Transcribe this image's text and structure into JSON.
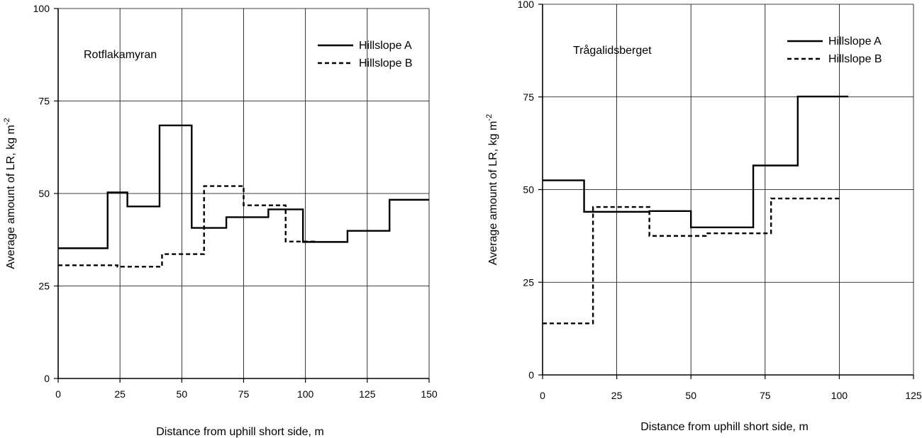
{
  "chart_data": [
    {
      "type": "line",
      "step": true,
      "annotation": "Rotflakamyran",
      "xlabel": "Distance from uphill short side, m",
      "ylabel": "Average amount of LR, kg m",
      "ylabel_sup": "-2",
      "xlim": [
        0,
        150
      ],
      "ylim": [
        0,
        100
      ],
      "xticks": [
        0,
        25,
        50,
        75,
        100,
        125,
        150
      ],
      "yticks": [
        0,
        25,
        50,
        75,
        100
      ],
      "grid": true,
      "legend_position": "top-right",
      "series": [
        {
          "name": "Hillslope A",
          "style": "solid",
          "x": [
            0,
            20,
            20,
            28,
            28,
            41,
            41,
            54,
            54,
            68,
            68,
            85,
            85,
            99,
            99,
            117,
            117,
            134,
            134,
            150
          ],
          "y": [
            35.2,
            35.2,
            50.3,
            50.3,
            46.5,
            46.5,
            68.4,
            68.4,
            40.7,
            40.7,
            43.6,
            43.6,
            45.7,
            45.7,
            36.9,
            36.9,
            39.9,
            39.9,
            48.3,
            48.3
          ]
        },
        {
          "name": "Hillslope B",
          "style": "dashed",
          "x": [
            0,
            24,
            24,
            42,
            42,
            59,
            59,
            75,
            75,
            92,
            92,
            104
          ],
          "y": [
            30.6,
            30.6,
            30.2,
            30.2,
            33.6,
            33.6,
            52.0,
            52.0,
            46.8,
            46.8,
            37.0,
            37.0
          ]
        }
      ]
    },
    {
      "type": "line",
      "step": true,
      "annotation": "Trågalidsberget",
      "xlabel": "Distance from uphill short side, m",
      "ylabel": "Average amount of LR, kg m",
      "ylabel_sup": "-2",
      "xlim": [
        0,
        125
      ],
      "ylim": [
        0,
        100
      ],
      "xticks": [
        0,
        25,
        50,
        75,
        100,
        125
      ],
      "yticks": [
        0,
        25,
        50,
        75,
        100
      ],
      "grid": true,
      "legend_position": "top-right",
      "series": [
        {
          "name": "Hillslope A",
          "style": "solid",
          "x": [
            0,
            14,
            14,
            36,
            36,
            50,
            50,
            71,
            71,
            86,
            86,
            103
          ],
          "y": [
            52.5,
            52.5,
            44.0,
            44.0,
            44.2,
            44.2,
            39.8,
            39.8,
            56.5,
            56.5,
            75.1,
            75.1
          ]
        },
        {
          "name": "Hillslope B",
          "style": "dashed",
          "x": [
            0,
            17,
            17,
            36,
            36,
            55,
            55,
            77,
            77,
            100
          ],
          "y": [
            13.9,
            13.9,
            45.3,
            45.3,
            37.5,
            37.5,
            38.2,
            38.2,
            47.6,
            47.6
          ]
        }
      ]
    }
  ]
}
